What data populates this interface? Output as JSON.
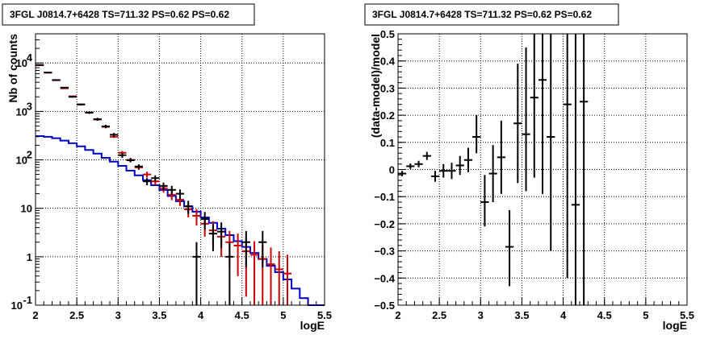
{
  "chart_data": [
    {
      "type": "step",
      "title": "3FGL J0814.7+6428 TS=711.32 PS=0.62 PS=0.62",
      "xlabel": "logE",
      "ylabel": "Nb of counts",
      "xlim": [
        2,
        5.5
      ],
      "ylim": [
        0.1,
        40000
      ],
      "yscale": "log",
      "grid": true,
      "x_ticks": [
        "2",
        "2.5",
        "3",
        "3.5",
        "4",
        "4.5",
        "5",
        "5.5"
      ],
      "y_ticks": [
        {
          "value": 0.1,
          "label": "10",
          "exp": "-1"
        },
        {
          "value": 1,
          "label": "1",
          "exp": ""
        },
        {
          "value": 10,
          "label": "10",
          "exp": ""
        },
        {
          "value": 100,
          "label": "10",
          "exp": "2"
        },
        {
          "value": 1000,
          "label": "10",
          "exp": "3"
        },
        {
          "value": 10000,
          "label": "10",
          "exp": "4"
        }
      ],
      "series": [
        {
          "kind": "model_total",
          "color": "#cc0000",
          "points": [
            {
              "x": 2.05,
              "y": 9000,
              "lo": 8800,
              "hi": 9200
            },
            {
              "x": 2.15,
              "y": 6300,
              "lo": 6150,
              "hi": 6450
            },
            {
              "x": 2.25,
              "y": 4400,
              "lo": 4280,
              "hi": 4520
            },
            {
              "x": 2.35,
              "y": 3000,
              "lo": 2910,
              "hi": 3090
            },
            {
              "x": 2.45,
              "y": 2050,
              "lo": 1980,
              "hi": 2120
            },
            {
              "x": 2.55,
              "y": 1400,
              "lo": 1350,
              "hi": 1450
            },
            {
              "x": 2.65,
              "y": 950,
              "lo": 915,
              "hi": 985
            },
            {
              "x": 2.75,
              "y": 680,
              "lo": 650,
              "hi": 710
            },
            {
              "x": 2.85,
              "y": 480,
              "lo": 458,
              "hi": 502
            },
            {
              "x": 2.95,
              "y": 300,
              "lo": 283,
              "hi": 317
            },
            {
              "x": 3.05,
              "y": 140,
              "lo": 128,
              "hi": 152
            },
            {
              "x": 3.15,
              "y": 100,
              "lo": 90,
              "hi": 110
            },
            {
              "x": 3.25,
              "y": 70,
              "lo": 62,
              "hi": 78
            },
            {
              "x": 3.35,
              "y": 50,
              "lo": 43,
              "hi": 57
            },
            {
              "x": 3.45,
              "y": 36,
              "lo": 30,
              "hi": 42
            },
            {
              "x": 3.55,
              "y": 26,
              "lo": 21,
              "hi": 31
            },
            {
              "x": 3.65,
              "y": 19,
              "lo": 14.7,
              "hi": 23.3
            },
            {
              "x": 3.75,
              "y": 15,
              "lo": 11.2,
              "hi": 18.8
            },
            {
              "x": 3.85,
              "y": 9.5,
              "lo": 6.5,
              "hi": 12.5
            },
            {
              "x": 3.95,
              "y": 7,
              "lo": 4.4,
              "hi": 9.6
            },
            {
              "x": 4.05,
              "y": 4.8,
              "lo": 2.6,
              "hi": 7
            },
            {
              "x": 4.15,
              "y": 3.5,
              "lo": 1.6,
              "hi": 5.4
            },
            {
              "x": 4.25,
              "y": 2.6,
              "lo": 1,
              "hi": 4.2
            },
            {
              "x": 4.35,
              "y": 2,
              "lo": 0.6,
              "hi": 3.4
            },
            {
              "x": 4.45,
              "y": 1.7,
              "lo": 0.4,
              "hi": 3
            },
            {
              "x": 4.55,
              "y": 1.3,
              "lo": 0.15,
              "hi": 2.5
            },
            {
              "x": 4.65,
              "y": 1.1,
              "lo": 0.1,
              "hi": 2.1
            },
            {
              "x": 4.75,
              "y": 0.9,
              "lo": 0.1,
              "hi": 1.8
            },
            {
              "x": 4.85,
              "y": 0.7,
              "lo": 0.1,
              "hi": 1.55
            },
            {
              "x": 4.95,
              "y": 0.55,
              "lo": 0.1,
              "hi": 1.3
            },
            {
              "x": 5.05,
              "y": 0.45,
              "lo": 0.1,
              "hi": 1.1
            }
          ]
        },
        {
          "kind": "data",
          "color": "#000000",
          "points": [
            {
              "x": 2.05,
              "y": 9100,
              "lo": 8900,
              "hi": 9300
            },
            {
              "x": 2.15,
              "y": 6350,
              "lo": 6200,
              "hi": 6500
            },
            {
              "x": 2.25,
              "y": 4450,
              "lo": 4320,
              "hi": 4580
            },
            {
              "x": 2.35,
              "y": 3100,
              "lo": 3000,
              "hi": 3200
            },
            {
              "x": 2.45,
              "y": 2000,
              "lo": 1920,
              "hi": 2080
            },
            {
              "x": 2.55,
              "y": 1390,
              "lo": 1320,
              "hi": 1460
            },
            {
              "x": 2.65,
              "y": 945,
              "lo": 890,
              "hi": 1000
            },
            {
              "x": 2.75,
              "y": 690,
              "lo": 640,
              "hi": 740
            },
            {
              "x": 2.85,
              "y": 490,
              "lo": 450,
              "hi": 530
            },
            {
              "x": 2.95,
              "y": 330,
              "lo": 300,
              "hi": 360
            },
            {
              "x": 3.05,
              "y": 125,
              "lo": 110,
              "hi": 140
            },
            {
              "x": 3.15,
              "y": 98,
              "lo": 89,
              "hi": 107
            },
            {
              "x": 3.25,
              "y": 73,
              "lo": 65,
              "hi": 81
            },
            {
              "x": 3.35,
              "y": 36,
              "lo": 30,
              "hi": 42
            },
            {
              "x": 3.45,
              "y": 42,
              "lo": 36,
              "hi": 48
            },
            {
              "x": 3.55,
              "y": 29,
              "lo": 24,
              "hi": 34
            },
            {
              "x": 3.65,
              "y": 24,
              "lo": 19,
              "hi": 29
            },
            {
              "x": 3.75,
              "y": 20,
              "lo": 15.5,
              "hi": 24.5
            },
            {
              "x": 3.85,
              "y": 11,
              "lo": 7.7,
              "hi": 14.3
            },
            {
              "x": 3.95,
              "y": 1,
              "lo": 0.1,
              "hi": 2
            },
            {
              "x": 4.05,
              "y": 6,
              "lo": 3.6,
              "hi": 8.4
            },
            {
              "x": 4.15,
              "y": 3,
              "lo": 1.3,
              "hi": 4.7
            },
            {
              "x": 4.25,
              "y": 3.3,
              "lo": 1.5,
              "hi": 5.1
            },
            {
              "x": 4.35,
              "y": 1,
              "lo": 0.1,
              "hi": 2
            },
            {
              "x": 4.55,
              "y": 2,
              "lo": 0.6,
              "hi": 3.4
            },
            {
              "x": 4.75,
              "y": 2,
              "lo": 0.6,
              "hi": 3.4
            }
          ]
        },
        {
          "kind": "model_background",
          "color": "#0000cc",
          "edges": [
            2.0,
            2.1,
            2.2,
            2.3,
            2.4,
            2.5,
            2.6,
            2.7,
            2.8,
            2.9,
            3.0,
            3.1,
            3.2,
            3.3,
            3.4,
            3.5,
            3.6,
            3.7,
            3.8,
            3.9,
            4.0,
            4.1,
            4.2,
            4.3,
            4.4,
            4.5,
            4.6,
            4.7,
            4.8,
            4.9,
            5.0,
            5.1,
            5.2,
            5.3,
            5.4,
            5.5
          ],
          "values": [
            310,
            300,
            280,
            250,
            220,
            190,
            160,
            135,
            110,
            92,
            75,
            60,
            48,
            38,
            30,
            24,
            18,
            14,
            11,
            8.5,
            6.5,
            5,
            3.8,
            2.8,
            2.1,
            1.6,
            1.2,
            0.9,
            0.65,
            0.48,
            0.34,
            0.22,
            0.14,
            0.1,
            0.1
          ]
        }
      ]
    },
    {
      "type": "scatter",
      "title": "3FGL J0814.7+6428 TS=711.32 PS=0.62 PS=0.62",
      "xlabel": "logE",
      "ylabel": "(data-model)/model",
      "xlim": [
        2,
        5.5
      ],
      "ylim": [
        -0.5,
        0.5
      ],
      "grid": true,
      "x_ticks": [
        "2",
        "2.5",
        "3",
        "3.5",
        "4",
        "4.5",
        "5",
        "5.5"
      ],
      "y_ticks": [
        "-0.5",
        "-0.4",
        "-0.3",
        "-0.2",
        "-0.1",
        "0",
        "0.1",
        "0.2",
        "0.3",
        "0.4",
        "0.5"
      ],
      "points": [
        {
          "x": 2.05,
          "y": -0.015,
          "lo": -0.025,
          "hi": -0.005
        },
        {
          "x": 2.15,
          "y": 0.012,
          "lo": 0.002,
          "hi": 0.022
        },
        {
          "x": 2.25,
          "y": 0.02,
          "lo": 0.008,
          "hi": 0.032
        },
        {
          "x": 2.35,
          "y": 0.05,
          "lo": 0.035,
          "hi": 0.065
        },
        {
          "x": 2.45,
          "y": -0.025,
          "lo": -0.045,
          "hi": -0.005
        },
        {
          "x": 2.55,
          "y": -0.005,
          "lo": -0.03,
          "hi": 0.02
        },
        {
          "x": 2.65,
          "y": -0.005,
          "lo": -0.035,
          "hi": 0.025
        },
        {
          "x": 2.75,
          "y": 0.015,
          "lo": -0.02,
          "hi": 0.05
        },
        {
          "x": 2.85,
          "y": 0.035,
          "lo": -0.01,
          "hi": 0.08
        },
        {
          "x": 2.95,
          "y": 0.12,
          "lo": 0.06,
          "hi": 0.2
        },
        {
          "x": 3.05,
          "y": -0.12,
          "lo": -0.21,
          "hi": -0.02
        },
        {
          "x": 3.15,
          "y": -0.015,
          "lo": -0.12,
          "hi": 0.09
        },
        {
          "x": 3.25,
          "y": 0.045,
          "lo": -0.09,
          "hi": 0.18
        },
        {
          "x": 3.35,
          "y": -0.285,
          "lo": -0.43,
          "hi": -0.15
        },
        {
          "x": 3.45,
          "y": 0.17,
          "lo": -0.05,
          "hi": 0.39
        },
        {
          "x": 3.55,
          "y": 0.13,
          "lo": -0.08,
          "hi": 0.45
        },
        {
          "x": 3.65,
          "y": 0.265,
          "lo": -0.03,
          "hi": 0.5
        },
        {
          "x": 3.75,
          "y": 0.33,
          "lo": -0.09,
          "hi": 0.5
        },
        {
          "x": 3.85,
          "y": 0.12,
          "lo": -0.3,
          "hi": 0.5
        },
        {
          "x": 4.05,
          "y": 0.24,
          "lo": -0.4,
          "hi": 0.5
        },
        {
          "x": 4.15,
          "y": -0.13,
          "lo": -0.5,
          "hi": 0.5
        },
        {
          "x": 4.25,
          "y": 0.25,
          "lo": -0.5,
          "hi": 0.5
        }
      ]
    }
  ]
}
